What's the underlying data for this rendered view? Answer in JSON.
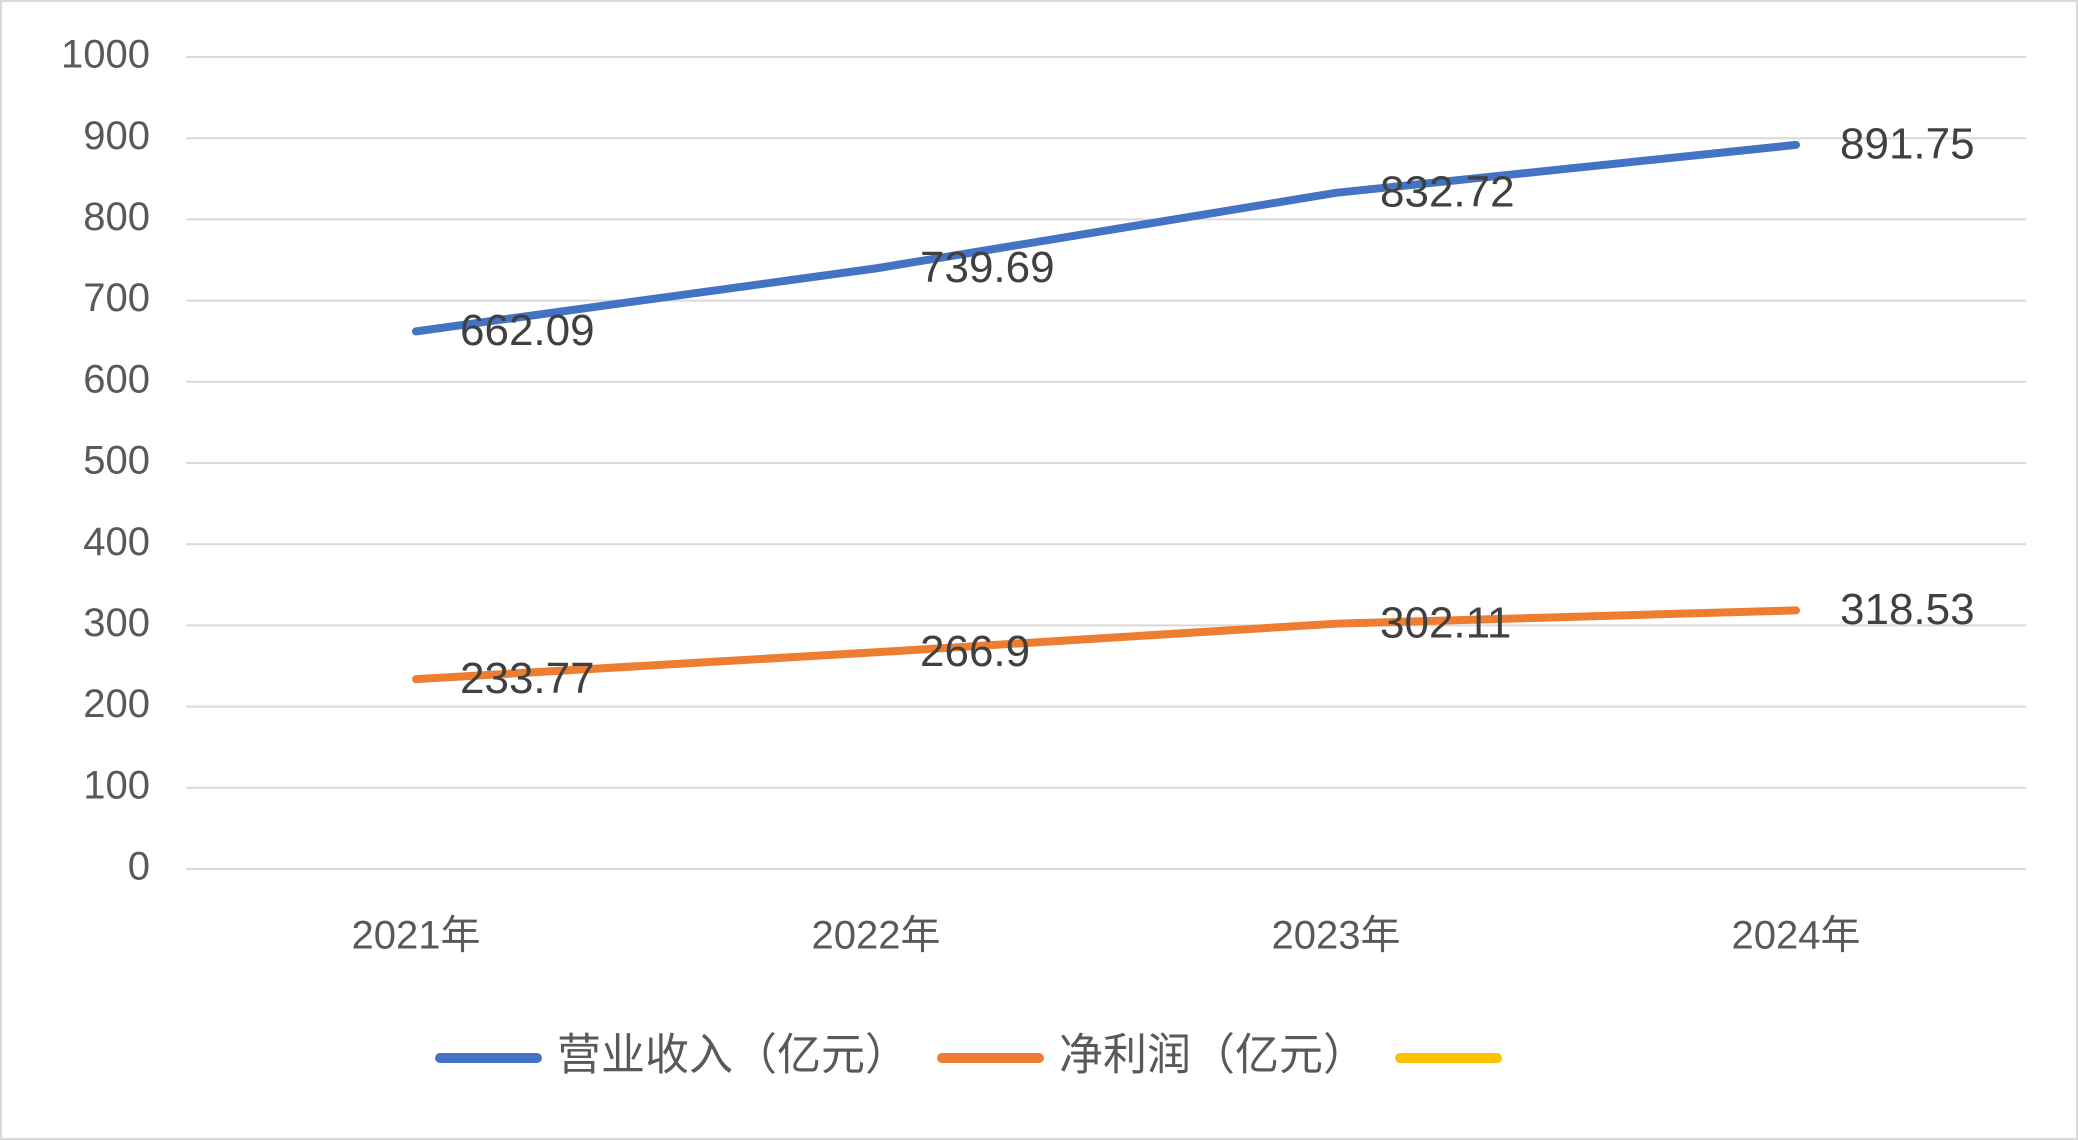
{
  "chart_data": {
    "type": "line",
    "categories": [
      "2021年",
      "2022年",
      "2023年",
      "2024年"
    ],
    "series": [
      {
        "name": "营业收入（亿元）",
        "color": "#4472c4",
        "values": [
          662.09,
          739.69,
          832.72,
          891.75
        ]
      },
      {
        "name": "净利润（亿元）",
        "color": "#ed7d31",
        "values": [
          233.77,
          266.9,
          302.11,
          318.53
        ]
      },
      {
        "color": "#ffc000",
        "values": [
          null,
          null,
          null,
          null
        ]
      }
    ],
    "ylim": [
      0,
      1000
    ],
    "yticks": [
      0,
      100,
      200,
      300,
      400,
      500,
      600,
      700,
      800,
      900,
      1000
    ],
    "grid": true,
    "legend": "bottom"
  }
}
